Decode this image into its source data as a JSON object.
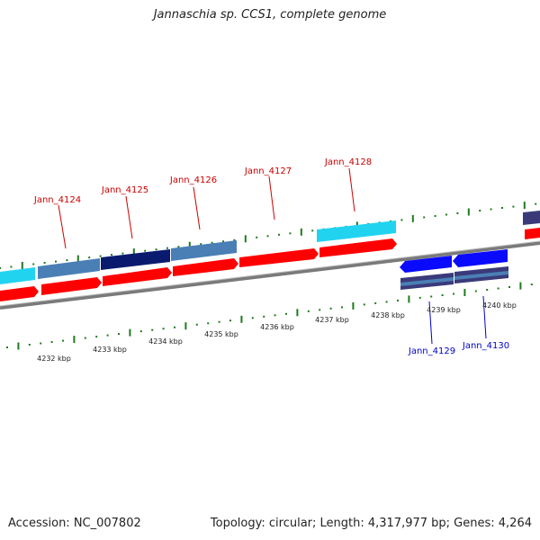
{
  "header": {
    "title": "Jannaschia sp. CCS1, complete genome"
  },
  "footer": {
    "accession": "Accession: NC_007802",
    "stats": "Topology: circular; Length: 4,317,977 bp; Genes: 4,264"
  },
  "colors": {
    "cds_fwd": "#ff0000",
    "gene_blue": "#4a7fb5",
    "gene_navy": "#0a1a6e",
    "gene_cyan": "#22d3f0",
    "cds_rev": "#0a0aff",
    "gene_purple": "#3a3a7a",
    "tick": "#1f7a1f",
    "label_fwd": "#cc0000",
    "label_rev": "#0000cc",
    "backbone": "#888888"
  },
  "ruler": {
    "labels": [
      "4232 kbp",
      "4233 kbp",
      "4234 kbp",
      "4235 kbp",
      "4236 kbp",
      "4237 kbp",
      "4238 kbp",
      "4239 kbp",
      "4240 kbp"
    ]
  },
  "genes_forward": [
    {
      "label": "Jann_4124"
    },
    {
      "label": "Jann_4125"
    },
    {
      "label": "Jann_4126"
    },
    {
      "label": "Jann_4127"
    },
    {
      "label": "Jann_4128"
    }
  ],
  "genes_reverse": [
    {
      "label": "Jann_4129"
    },
    {
      "label": "Jann_4130"
    }
  ]
}
